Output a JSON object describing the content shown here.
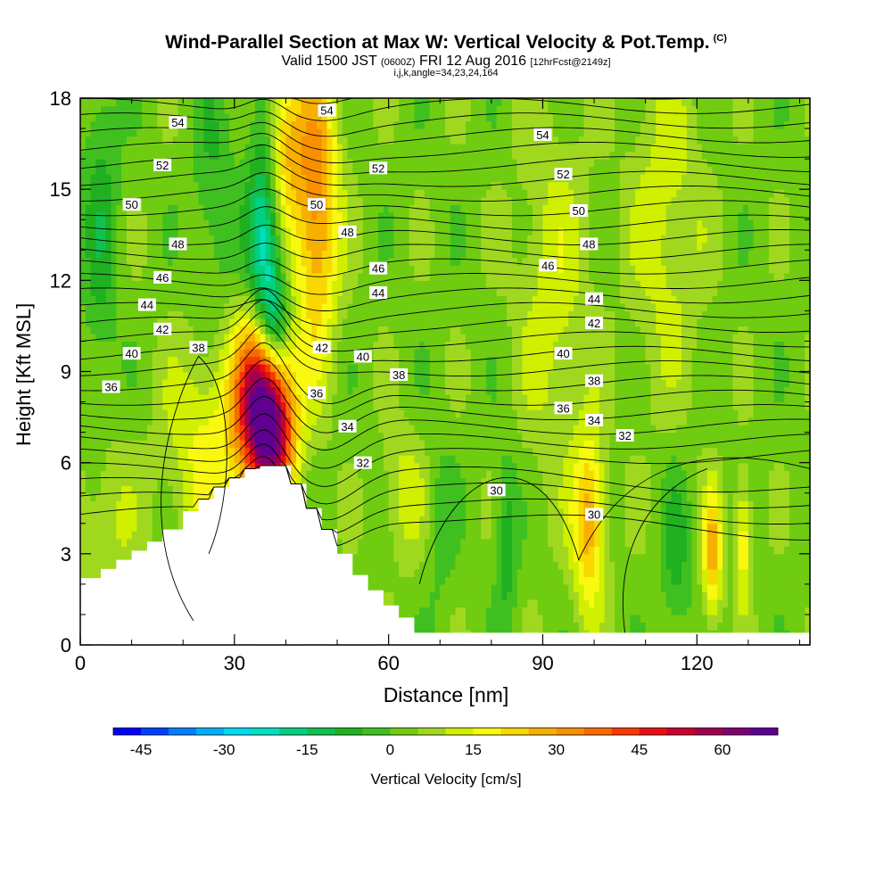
{
  "chart_data": {
    "type": "heatmap",
    "title": "Wind-Parallel Section at Max W: Vertical Velocity & Pot.Temp.",
    "title_mark": "(C)",
    "subtitle_main": "Valid 1500 JST",
    "subtitle_utc": "(0600Z)",
    "subtitle_date": "FRI 12 Aug 2016",
    "subtitle_fcst": "[12hrFcst@2149z]",
    "subtitle2": "i,j,k,angle=34,23,24,164",
    "xlabel": "Distance [nm]",
    "ylabel": "Height [Kft MSL]",
    "xlim": [
      0,
      142
    ],
    "ylim": [
      0,
      18
    ],
    "x_ticks": [
      "0",
      "30",
      "60",
      "90",
      "120"
    ],
    "y_ticks": [
      "0",
      "3",
      "6",
      "9",
      "12",
      "15",
      "18"
    ],
    "colorbar": {
      "label": "Vertical Velocity [cm/s]",
      "ticks": [
        "-45",
        "-30",
        "-15",
        "0",
        "15",
        "30",
        "45",
        "60"
      ],
      "range": [
        -50,
        70
      ],
      "step": 5,
      "colors": [
        "#0000ff",
        "#0040ff",
        "#0080ff",
        "#00b0ff",
        "#00d8f0",
        "#00e0c0",
        "#00d080",
        "#10c050",
        "#20b020",
        "#40c020",
        "#70cc10",
        "#a0d820",
        "#d0f000",
        "#f8f810",
        "#f8d800",
        "#f8b000",
        "#f89000",
        "#f86a00",
        "#f83a00",
        "#e81010",
        "#c80030",
        "#a00050",
        "#800070",
        "#600090"
      ]
    },
    "terrain_kft": {
      "x": [
        0,
        4,
        7,
        10,
        13,
        16,
        20,
        23,
        26,
        29,
        32,
        35,
        38,
        41,
        44,
        47,
        50,
        53,
        56,
        59,
        62,
        65,
        142
      ],
      "y": [
        2.2,
        2.5,
        2.8,
        3.1,
        3.4,
        3.8,
        4.4,
        4.8,
        5.2,
        5.5,
        5.8,
        5.9,
        5.9,
        5.3,
        4.5,
        3.8,
        3.0,
        2.3,
        1.8,
        1.3,
        0.9,
        0.4,
        0.4
      ]
    },
    "theta_labels": [
      {
        "text": "54",
        "x": 19,
        "y": 17.2
      },
      {
        "text": "52",
        "x": 16,
        "y": 15.8
      },
      {
        "text": "50",
        "x": 10,
        "y": 14.5
      },
      {
        "text": "48",
        "x": 19,
        "y": 13.2
      },
      {
        "text": "46",
        "x": 16,
        "y": 12.1
      },
      {
        "text": "44",
        "x": 13,
        "y": 11.2
      },
      {
        "text": "42",
        "x": 16,
        "y": 10.4
      },
      {
        "text": "40",
        "x": 10,
        "y": 9.6
      },
      {
        "text": "38",
        "x": 23,
        "y": 9.8
      },
      {
        "text": "36",
        "x": 6,
        "y": 8.5
      },
      {
        "text": "54",
        "x": 48,
        "y": 17.6
      },
      {
        "text": "52",
        "x": 58,
        "y": 15.7
      },
      {
        "text": "50",
        "x": 46,
        "y": 14.5
      },
      {
        "text": "48",
        "x": 52,
        "y": 13.6
      },
      {
        "text": "46",
        "x": 58,
        "y": 12.4
      },
      {
        "text": "44",
        "x": 58,
        "y": 11.6
      },
      {
        "text": "42",
        "x": 47,
        "y": 9.8
      },
      {
        "text": "40",
        "x": 55,
        "y": 9.5
      },
      {
        "text": "38",
        "x": 62,
        "y": 8.9
      },
      {
        "text": "36",
        "x": 46,
        "y": 8.3
      },
      {
        "text": "34",
        "x": 52,
        "y": 7.2
      },
      {
        "text": "32",
        "x": 55,
        "y": 6.0
      },
      {
        "text": "30",
        "x": 81,
        "y": 5.1
      },
      {
        "text": "54",
        "x": 90,
        "y": 16.8
      },
      {
        "text": "52",
        "x": 94,
        "y": 15.5
      },
      {
        "text": "50",
        "x": 97,
        "y": 14.3
      },
      {
        "text": "48",
        "x": 99,
        "y": 13.2
      },
      {
        "text": "46",
        "x": 91,
        "y": 12.5
      },
      {
        "text": "44",
        "x": 100,
        "y": 11.4
      },
      {
        "text": "42",
        "x": 100,
        "y": 10.6
      },
      {
        "text": "40",
        "x": 94,
        "y": 9.6
      },
      {
        "text": "38",
        "x": 100,
        "y": 8.7
      },
      {
        "text": "36",
        "x": 94,
        "y": 7.8
      },
      {
        "text": "34",
        "x": 100,
        "y": 7.4
      },
      {
        "text": "32",
        "x": 106,
        "y": 6.9
      },
      {
        "text": "30",
        "x": 100,
        "y": 4.3
      }
    ],
    "velocity_features": [
      {
        "x": 35.5,
        "y": 8.0,
        "value": 68,
        "sx": 3.5,
        "sy": 1.9
      },
      {
        "x": 38,
        "y": 6.5,
        "value": 25,
        "sx": 3,
        "sy": 1.5
      },
      {
        "x": 25,
        "y": 6.5,
        "value": 14,
        "sx": 6,
        "sy": 2.5
      },
      {
        "x": 46,
        "y": 14.5,
        "value": 30,
        "sx": 3,
        "sy": 3.5
      },
      {
        "x": 39,
        "y": 16.5,
        "value": 25,
        "sx": 3,
        "sy": 2.0
      },
      {
        "x": 36,
        "y": 13.5,
        "value": -30,
        "sx": 2.3,
        "sy": 3.5
      },
      {
        "x": 38,
        "y": 10.5,
        "value": -20,
        "sx": 1.8,
        "sy": 1.2
      },
      {
        "x": 99,
        "y": 4.0,
        "value": 26,
        "sx": 2.2,
        "sy": 2.0
      },
      {
        "x": 123,
        "y": 3.0,
        "value": 25,
        "sx": 1.3,
        "sy": 1.5
      },
      {
        "x": 129,
        "y": 3.5,
        "value": 17,
        "sx": 1.2,
        "sy": 1.5
      },
      {
        "x": 63,
        "y": 5.0,
        "value": 10,
        "sx": 3,
        "sy": 1.5
      },
      {
        "x": 83,
        "y": 3.5,
        "value": -12,
        "sx": 1.5,
        "sy": 2.0
      },
      {
        "x": 92,
        "y": 11.5,
        "value": 10,
        "sx": 5,
        "sy": 4
      },
      {
        "x": 114,
        "y": 14,
        "value": 10,
        "sx": 5,
        "sy": 4
      },
      {
        "x": 4,
        "y": 14,
        "value": -10,
        "sx": 2.5,
        "sy": 4
      },
      {
        "x": 26,
        "y": 15,
        "value": -8,
        "sx": 3,
        "sy": 3
      },
      {
        "x": 5,
        "y": 4,
        "value": 8,
        "sx": 4,
        "sy": 2
      },
      {
        "x": 116,
        "y": 3,
        "value": -10,
        "sx": 2,
        "sy": 2
      },
      {
        "x": 70,
        "y": 4,
        "value": -6,
        "sx": 2,
        "sy": 2
      }
    ]
  }
}
